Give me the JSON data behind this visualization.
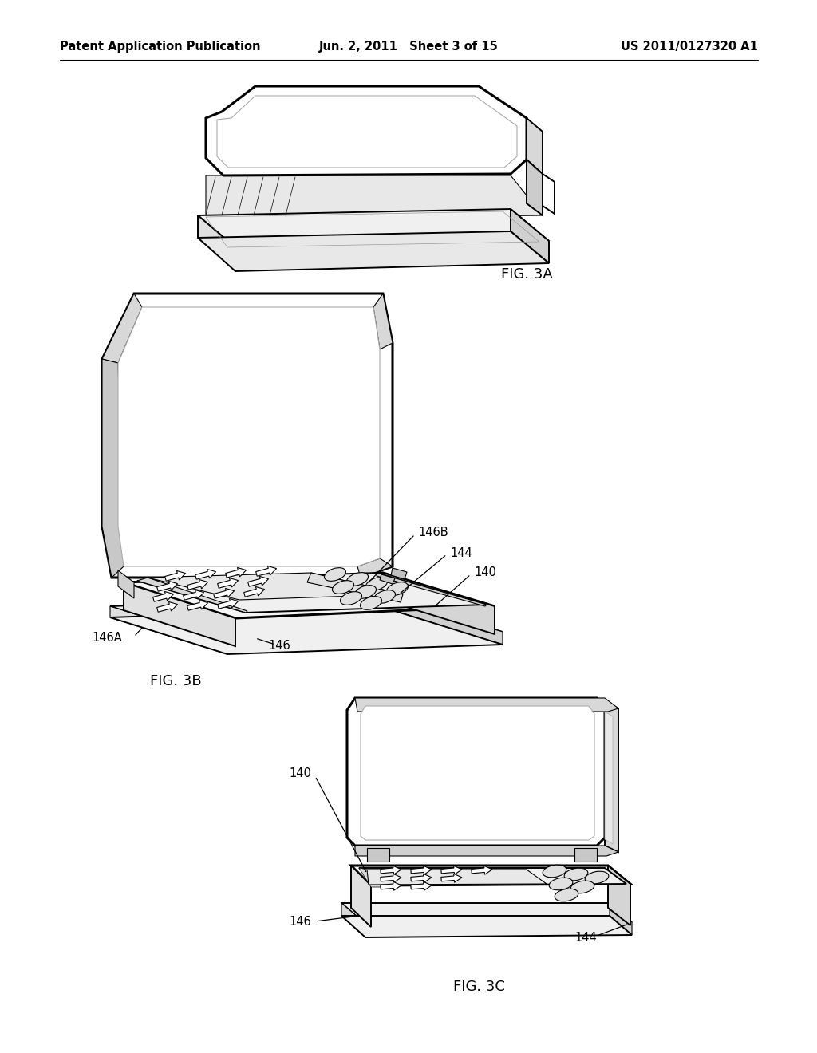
{
  "background_color": "#ffffff",
  "header_left": "Patent Application Publication",
  "header_center": "Jun. 2, 2011   Sheet 3 of 15",
  "header_right": "US 2011/0127320 A1",
  "fig_3A_label": "FIG. 3A",
  "fig_3B_label": "FIG. 3B",
  "fig_3C_label": "FIG. 3C",
  "ann_146B": "146B",
  "ann_144_b": "144",
  "ann_140_b": "140",
  "ann_146A": "146A",
  "ann_146_b": "146",
  "ann_140_c": "140",
  "ann_146_c": "146",
  "ann_144_c": "144",
  "lc": "#000000",
  "lw_thick": 2.2,
  "lw_med": 1.4,
  "lw_thin": 0.8,
  "lw_hair": 0.5,
  "header_fontsize": 10.5,
  "label_fontsize": 13,
  "ann_fontsize": 10.5
}
